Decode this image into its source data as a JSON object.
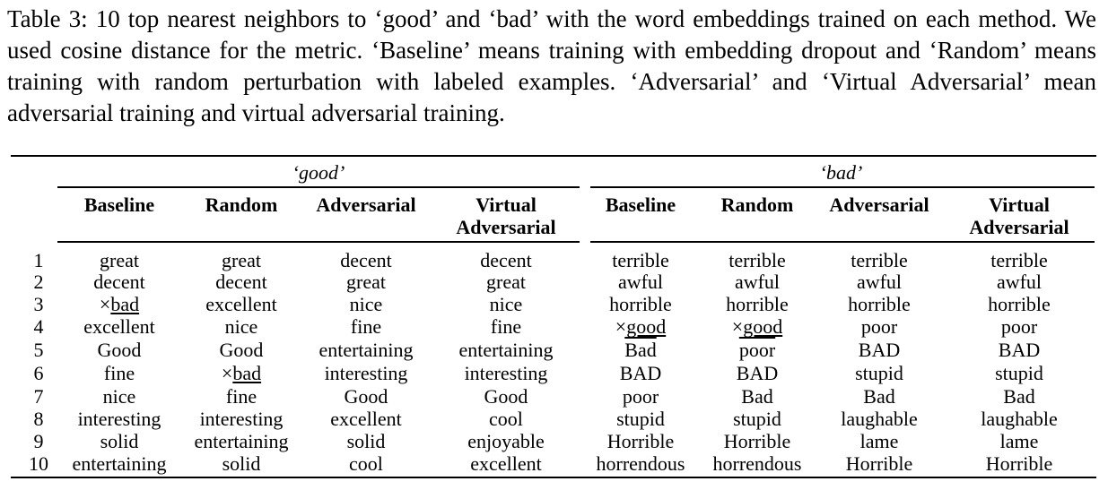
{
  "caption": "Table 3: 10 top nearest neighbors to ‘good’ and ‘bad’ with the word embeddings trained on each method. We used cosine distance for the metric. ‘Baseline’ means training with embedding dropout and ‘Random’ means training with random perturbation with labeled examples. ‘Adversarial’ and ‘Virtual Adversarial’ mean adversarial training and virtual adversarial training.",
  "groups": [
    "‘good’",
    "‘bad’"
  ],
  "headers": [
    [
      "Baseline"
    ],
    [
      "Random"
    ],
    [
      "Adversarial"
    ],
    [
      "Virtual",
      "Adversarial"
    ],
    [
      "Baseline"
    ],
    [
      "Random"
    ],
    [
      "Adversarial"
    ],
    [
      "Virtual",
      "Adversarial"
    ]
  ],
  "row_numbers": [
    "1",
    "2",
    "3",
    "4",
    "5",
    "6",
    "7",
    "8",
    "9",
    "10"
  ],
  "rows": [
    [
      "great",
      "great",
      "decent",
      "decent",
      "terrible",
      "terrible",
      "terrible",
      "terrible"
    ],
    [
      "decent",
      "decent",
      "great",
      "great",
      "awful",
      "awful",
      "awful",
      "awful"
    ],
    [
      "×bad",
      "excellent",
      "nice",
      "nice",
      "horrible",
      "horrible",
      "horrible",
      "horrible"
    ],
    [
      "excellent",
      "nice",
      "fine",
      "fine",
      "×good",
      "×good",
      "poor",
      "poor"
    ],
    [
      "Good",
      "Good",
      "entertaining",
      "entertaining",
      "Bad",
      "poor",
      "BAD",
      "BAD"
    ],
    [
      "fine",
      "×bad",
      "interesting",
      "interesting",
      "BAD",
      "BAD",
      "stupid",
      "stupid"
    ],
    [
      "nice",
      "fine",
      "Good",
      "Good",
      "poor",
      "Bad",
      "Bad",
      "Bad"
    ],
    [
      "interesting",
      "interesting",
      "excellent",
      "cool",
      "stupid",
      "stupid",
      "laughable",
      "laughable"
    ],
    [
      "solid",
      "entertaining",
      "solid",
      "enjoyable",
      "Horrible",
      "Horrible",
      "lame",
      "lame"
    ],
    [
      "entertaining",
      "solid",
      "cool",
      "excellent",
      "horrendous",
      "horrendous",
      "Horrible",
      "Horrible"
    ]
  ]
}
